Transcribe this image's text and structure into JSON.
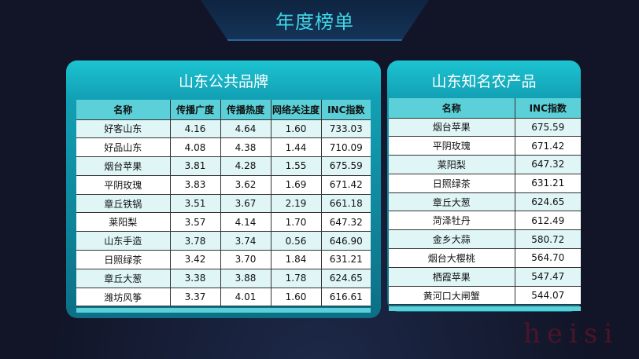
{
  "title": "年度榜单",
  "left": {
    "title": "山东公共品牌",
    "headers": [
      "名称",
      "传播广度",
      "传播热度",
      "网络关注度",
      "INC指数"
    ],
    "rows": [
      [
        "好客山东",
        "4.16",
        "4.64",
        "1.60",
        "733.03"
      ],
      [
        "好品山东",
        "4.08",
        "4.38",
        "1.44",
        "710.09"
      ],
      [
        "烟台苹果",
        "3.81",
        "4.28",
        "1.55",
        "675.59"
      ],
      [
        "平阴玫瑰",
        "3.83",
        "3.62",
        "1.69",
        "671.42"
      ],
      [
        "章丘铁锅",
        "3.51",
        "3.67",
        "2.19",
        "661.18"
      ],
      [
        "莱阳梨",
        "3.57",
        "4.14",
        "1.70",
        "647.32"
      ],
      [
        "山东手造",
        "3.78",
        "3.74",
        "0.56",
        "646.90"
      ],
      [
        "日照绿茶",
        "3.42",
        "3.70",
        "1.84",
        "631.21"
      ],
      [
        "章丘大葱",
        "3.38",
        "3.88",
        "1.78",
        "624.65"
      ],
      [
        "潍坊风筝",
        "3.37",
        "4.01",
        "1.60",
        "616.61"
      ]
    ]
  },
  "right": {
    "title": "山东知名农产品",
    "headers": [
      "名称",
      "INC指数"
    ],
    "rows": [
      [
        "烟台苹果",
        "675.59"
      ],
      [
        "平阴玫瑰",
        "671.42"
      ],
      [
        "莱阳梨",
        "647.32"
      ],
      [
        "日照绿茶",
        "631.21"
      ],
      [
        "章丘大葱",
        "624.65"
      ],
      [
        "菏泽牡丹",
        "612.49"
      ],
      [
        "金乡大蒜",
        "580.72"
      ],
      [
        "烟台大樱桃",
        "564.70"
      ],
      [
        "栖霞苹果",
        "547.47"
      ],
      [
        "黄河口大闸蟹",
        "544.07"
      ]
    ]
  },
  "watermark": "heisi"
}
